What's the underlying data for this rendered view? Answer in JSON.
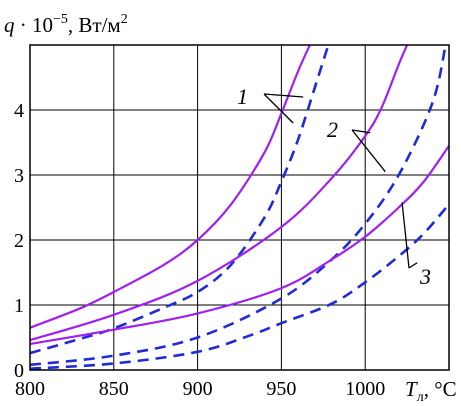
{
  "chart_data": {
    "type": "line",
    "title": "",
    "ylabel": {
      "symbol": "q",
      "mult": " · 10",
      "exp": "−5",
      "unit": ", Вт/м",
      "unit_exp": "2"
    },
    "xlabel": {
      "symbol": "T",
      "sub": "л",
      "unit": ", °C"
    },
    "xlim": [
      800,
      1050
    ],
    "ylim": [
      0,
      5
    ],
    "xticks": [
      800,
      850,
      900,
      950,
      1000
    ],
    "yticks": [
      0,
      1,
      2,
      3,
      4
    ],
    "grid": "horizontal",
    "colors": {
      "solid": "#a020f0",
      "dashed": "#1f2bd6",
      "grid": "#000000"
    },
    "series": [
      {
        "label": "1",
        "style": "solid",
        "x": [
          800,
          830,
          850,
          880,
          900,
          920,
          940,
          950,
          960,
          967
        ],
        "y": [
          0.65,
          0.95,
          1.2,
          1.62,
          2.0,
          2.55,
          3.35,
          3.95,
          4.6,
          5.0
        ]
      },
      {
        "label": "1",
        "style": "dashed",
        "x": [
          800,
          830,
          850,
          880,
          900,
          920,
          940,
          950,
          960,
          970,
          978
        ],
        "y": [
          0.26,
          0.48,
          0.64,
          0.96,
          1.2,
          1.62,
          2.35,
          2.9,
          3.55,
          4.35,
          5.0
        ]
      },
      {
        "label": "2",
        "style": "solid",
        "x": [
          800,
          850,
          900,
          950,
          980,
          1000,
          1010,
          1020,
          1025
        ],
        "y": [
          0.46,
          0.85,
          1.37,
          2.2,
          2.95,
          3.6,
          4.05,
          4.7,
          5.0
        ]
      },
      {
        "label": "2",
        "style": "dashed",
        "x": [
          800,
          850,
          900,
          950,
          980,
          1000,
          1020,
          1040,
          1048
        ],
        "y": [
          0.08,
          0.22,
          0.5,
          1.1,
          1.7,
          2.25,
          3.0,
          4.1,
          5.0
        ]
      },
      {
        "label": "3",
        "style": "solid",
        "x": [
          800,
          850,
          900,
          950,
          980,
          1000,
          1020,
          1035,
          1050
        ],
        "y": [
          0.4,
          0.62,
          0.87,
          1.26,
          1.7,
          2.05,
          2.5,
          2.9,
          3.45
        ]
      },
      {
        "label": "3",
        "style": "dashed",
        "x": [
          800,
          850,
          900,
          930,
          950,
          980,
          1000,
          1020,
          1035,
          1050
        ],
        "y": [
          0.02,
          0.1,
          0.28,
          0.52,
          0.72,
          1.02,
          1.35,
          1.75,
          2.1,
          2.55
        ]
      }
    ],
    "callouts": [
      "1",
      "2",
      "3"
    ]
  }
}
